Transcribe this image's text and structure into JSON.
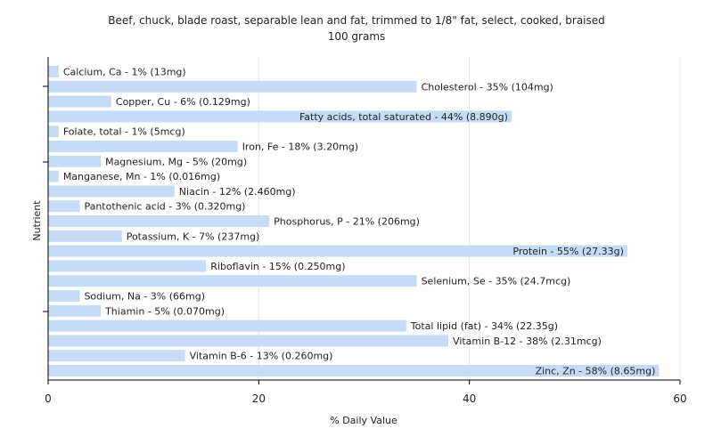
{
  "chart_data": {
    "type": "bar",
    "orientation": "horizontal",
    "title": "Beef, chuck, blade roast, separable lean and fat, trimmed to 1/8\" fat, select, cooked, braised",
    "subtitle": "100 grams",
    "xlabel": "% Daily Value",
    "ylabel": "Nutrient",
    "xlim": [
      0,
      60
    ],
    "xticks": [
      "0",
      "20",
      "40",
      "60"
    ],
    "grid": true,
    "bar_color": "#c6dcf6",
    "categories": [
      "Calcium, Ca",
      "Cholesterol",
      "Copper, Cu",
      "Fatty acids, total saturated",
      "Folate, total",
      "Iron, Fe",
      "Magnesium, Mg",
      "Manganese, Mn",
      "Niacin",
      "Pantothenic acid",
      "Phosphorus, P",
      "Potassium, K",
      "Protein",
      "Riboflavin",
      "Selenium, Se",
      "Sodium, Na",
      "Thiamin",
      "Total lipid (fat)",
      "Vitamin B-12",
      "Vitamin B-6",
      "Zinc, Zn"
    ],
    "values": [
      1,
      35,
      6,
      44,
      1,
      18,
      5,
      1,
      12,
      3,
      21,
      7,
      55,
      15,
      35,
      3,
      5,
      34,
      38,
      13,
      58
    ],
    "labels": [
      "Calcium, Ca - 1% (13mg)",
      "Cholesterol - 35% (104mg)",
      "Copper, Cu - 6% (0.129mg)",
      "Fatty acids, total saturated - 44% (8.890g)",
      "Folate, total - 1% (5mcg)",
      "Iron, Fe - 18% (3.20mg)",
      "Magnesium, Mg - 5% (20mg)",
      "Manganese, Mn - 1% (0.016mg)",
      "Niacin - 12% (2.460mg)",
      "Pantothenic acid - 3% (0.320mg)",
      "Phosphorus, P - 21% (206mg)",
      "Potassium, K - 7% (237mg)",
      "Protein - 55% (27.33g)",
      "Riboflavin - 15% (0.250mg)",
      "Selenium, Se - 35% (24.7mcg)",
      "Sodium, Na - 3% (66mg)",
      "Thiamin - 5% (0.070mg)",
      "Total lipid (fat) - 34% (22.35g)",
      "Vitamin B-12 - 38% (2.31mcg)",
      "Vitamin B-6 - 13% (0.260mg)",
      "Zinc, Zn - 58% (8.65mg)"
    ]
  }
}
